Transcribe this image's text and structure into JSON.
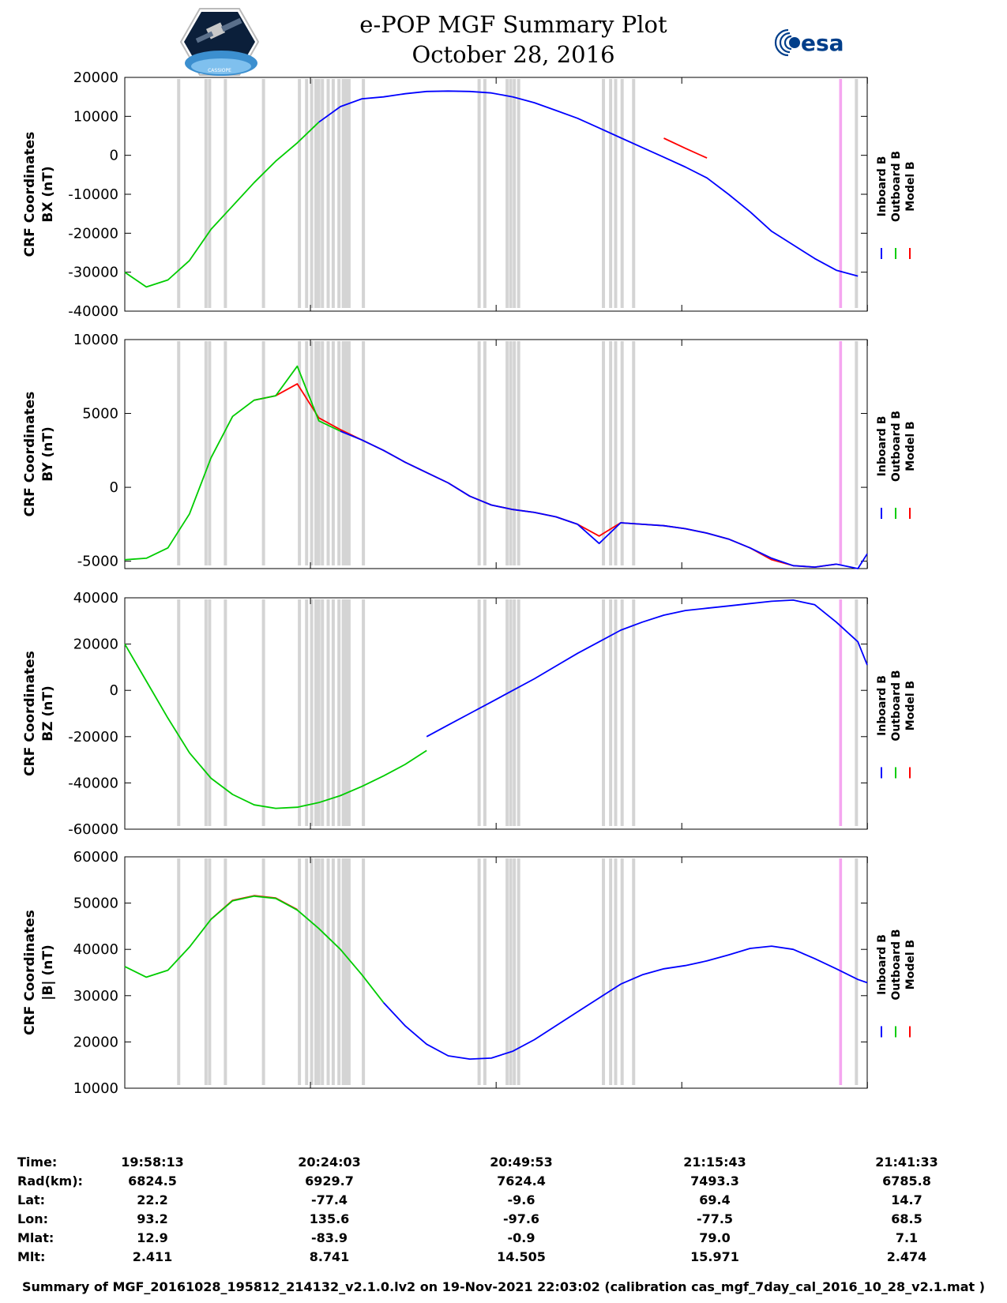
{
  "header": {
    "title_line1": "e-POP MGF Summary Plot",
    "title_line2": "October 28, 2016",
    "logo_left_text": "CASSIOPE",
    "logo_right_text": "esa"
  },
  "colors": {
    "inboard": "#0000ff",
    "outboard": "#00cc00",
    "model": "#ff0000",
    "gap_band": "#d4d4d4",
    "event_band": "#f5a6f0"
  },
  "legend": {
    "labels": [
      "Inboard B",
      "Outboard B",
      "Model B"
    ]
  },
  "chart_data": [
    {
      "type": "line",
      "ylabel_line1": "CRF Coordinates",
      "ylabel_line2": "BX (nT)",
      "ylim": [
        -40000,
        20000
      ],
      "yticks": [
        20000,
        10000,
        0,
        -10000,
        -20000,
        -30000,
        -40000
      ],
      "x_minutes": [
        0,
        3,
        6,
        9,
        12,
        15,
        18,
        21,
        24,
        27,
        30,
        33,
        36,
        39,
        42,
        45,
        48,
        51,
        54,
        57,
        60,
        63,
        66,
        69,
        72,
        75,
        78,
        81,
        84,
        87,
        90,
        93,
        96,
        99,
        102,
        103.3
      ],
      "series": [
        {
          "name": "Outboard B",
          "from": 0,
          "to": 9,
          "values": [
            -30000,
            -33800,
            -32000,
            -27000,
            -19000,
            -13000,
            -7000,
            -1500,
            3200,
            8500
          ]
        },
        {
          "name": "Inboard B",
          "from": 9,
          "to": 35,
          "values": [
            8500,
            12500,
            14500,
            15000,
            15800,
            16400,
            16500,
            16400,
            16000,
            15000,
            13500,
            11500,
            9500,
            7000,
            4500,
            2000,
            -500,
            -3000,
            -5800,
            -10000,
            -14500,
            -19500,
            -23000,
            -26500,
            -29500,
            -31000
          ]
        },
        {
          "name": "Model B",
          "from": 25,
          "to": 27,
          "values": [
            4400,
            1800,
            -700
          ]
        }
      ]
    },
    {
      "type": "line",
      "ylabel_line1": "CRF Coordinates",
      "ylabel_line2": "BY (nT)",
      "ylim": [
        -5500,
        10000
      ],
      "yticks": [
        10000,
        5000,
        0,
        -5000
      ],
      "x_minutes": [
        0,
        3,
        6,
        9,
        12,
        15,
        18,
        21,
        24,
        27,
        30,
        33,
        36,
        39,
        42,
        45,
        48,
        51,
        54,
        57,
        60,
        63,
        66,
        69,
        72,
        75,
        78,
        81,
        84,
        87,
        90,
        93,
        96,
        99,
        102,
        103.3
      ],
      "series": [
        {
          "name": "Outboard B",
          "from": 0,
          "to": 10,
          "values": [
            -4900,
            -4800,
            -4100,
            -1800,
            2000,
            4800,
            5900,
            6200,
            8200,
            4500,
            3800
          ]
        },
        {
          "name": "Inboard B",
          "from": 10,
          "to": 35,
          "values": [
            3800,
            3200,
            2500,
            1700,
            1000,
            300,
            -600,
            -1200,
            -1500,
            -1700,
            -2000,
            -2500,
            -3800,
            -2400,
            -2500,
            -2600,
            -2800,
            -3100,
            -3500,
            -4100,
            -4800,
            -5300,
            -5400,
            -5200,
            -5500,
            -4500
          ]
        },
        {
          "name": "Model B",
          "from": 6,
          "to": 33,
          "values": [
            5900,
            6200,
            7000,
            4700,
            3900,
            3200,
            2500,
            1700,
            1000,
            300,
            -600,
            -1200,
            -1500,
            -1700,
            -2000,
            -2500,
            -3300,
            -2400,
            -2500,
            -2600,
            -2800,
            -3100,
            -3500,
            -4100,
            -4900,
            -5300,
            -5400,
            -5200
          ]
        }
      ]
    },
    {
      "type": "line",
      "ylabel_line1": "CRF Coordinates",
      "ylabel_line2": "BZ (nT)",
      "ylim": [
        -60000,
        40000
      ],
      "yticks": [
        40000,
        20000,
        0,
        -20000,
        -40000,
        -60000
      ],
      "x_minutes": [
        0,
        3,
        6,
        9,
        12,
        15,
        18,
        21,
        24,
        27,
        30,
        33,
        36,
        39,
        42,
        45,
        48,
        51,
        54,
        57,
        60,
        63,
        66,
        69,
        72,
        75,
        78,
        81,
        84,
        87,
        90,
        93,
        96,
        99,
        102,
        103.3
      ],
      "series": [
        {
          "name": "Outboard B",
          "from": 0,
          "to": 14,
          "values": [
            20000,
            4000,
            -12000,
            -27000,
            -38000,
            -45000,
            -49500,
            -51000,
            -50500,
            -48500,
            -45500,
            -41500,
            -37000,
            -32000,
            -26000
          ]
        },
        {
          "name": "Inboard B",
          "from": 14,
          "to": 35,
          "values": [
            -20000,
            -15000,
            -10000,
            -5000,
            0,
            5000,
            10500,
            16000,
            21000,
            26000,
            29500,
            32500,
            34500,
            35500,
            36500,
            37500,
            38500,
            39000,
            37000,
            29500,
            21000,
            11000
          ]
        }
      ]
    },
    {
      "type": "line",
      "ylabel_line1": "CRF Coordinates",
      "ylabel_line2": "|B| (nT)",
      "ylim": [
        10000,
        60000
      ],
      "yticks": [
        60000,
        50000,
        40000,
        30000,
        20000,
        10000
      ],
      "x_minutes": [
        0,
        3,
        6,
        9,
        12,
        15,
        18,
        21,
        24,
        27,
        30,
        33,
        36,
        39,
        42,
        45,
        48,
        51,
        54,
        57,
        60,
        63,
        66,
        69,
        72,
        75,
        78,
        81,
        84,
        87,
        90,
        93,
        96,
        99,
        102,
        103.3
      ],
      "series": [
        {
          "name": "Outboard B",
          "from": 0,
          "to": 12,
          "values": [
            36300,
            34000,
            35500,
            40500,
            46500,
            50500,
            51500,
            51000,
            48500,
            44500,
            40000,
            34500,
            28500
          ]
        },
        {
          "name": "Inboard B",
          "from": 12,
          "to": 35,
          "values": [
            28500,
            23500,
            19500,
            17000,
            16300,
            16500,
            18000,
            20500,
            23500,
            26500,
            29500,
            32500,
            34500,
            35800,
            36500,
            37500,
            38800,
            40200,
            40700,
            40000,
            38000,
            35800,
            33500,
            32800
          ]
        },
        {
          "name": "Model B",
          "from": 4,
          "to": 8,
          "values": [
            46500,
            50600,
            51600,
            51100,
            48600
          ]
        }
      ]
    }
  ],
  "gap_bands_minutes": [
    7.5,
    11.3,
    11.8,
    14.0,
    19.3,
    24.3,
    25.3,
    26.0,
    26.6,
    27.0,
    27.5,
    28.3,
    29.0,
    29.8,
    30.4,
    30.8,
    31.2,
    33.2,
    49.3,
    50.1,
    53.2,
    53.7,
    54.2,
    54.8,
    66.6,
    67.6,
    68.3,
    69.2,
    70.8,
    101.8
  ],
  "event_band_minutes": [
    99.4,
    99.8
  ],
  "x_axis": {
    "start_minutes": 0,
    "end_minutes": 103.3,
    "tick_minutes": [
      0,
      25.83,
      51.67,
      77.5,
      103.33
    ]
  },
  "footer": {
    "row_labels": [
      "Time:",
      "Rad(km):",
      "Lat:",
      "Lon:",
      "Mlat:",
      "Mlt:"
    ],
    "columns": [
      {
        "time": "19:58:13",
        "rad": "6824.5",
        "lat": "22.2",
        "lon": "93.2",
        "mlat": "12.9",
        "mlt": "2.411"
      },
      {
        "time": "20:24:03",
        "rad": "6929.7",
        "lat": "-77.4",
        "lon": "135.6",
        "mlat": "-83.9",
        "mlt": "8.741"
      },
      {
        "time": "20:49:53",
        "rad": "7624.4",
        "lat": "-9.6",
        "lon": "-97.6",
        "mlat": "-0.9",
        "mlt": "14.505"
      },
      {
        "time": "21:15:43",
        "rad": "7493.3",
        "lat": "69.4",
        "lon": "-77.5",
        "mlat": "79.0",
        "mlt": "15.971"
      },
      {
        "time": "21:41:33",
        "rad": "6785.8",
        "lat": "14.7",
        "lon": "68.5",
        "mlat": "7.1",
        "mlt": "2.474"
      }
    ],
    "note": "Summary of MGF_20161028_195812_214132_v2.1.0.lv2 on 19-Nov-2021 22:03:02 (calibration cas_mgf_7day_cal_2016_10_28_v2.1.mat )"
  }
}
